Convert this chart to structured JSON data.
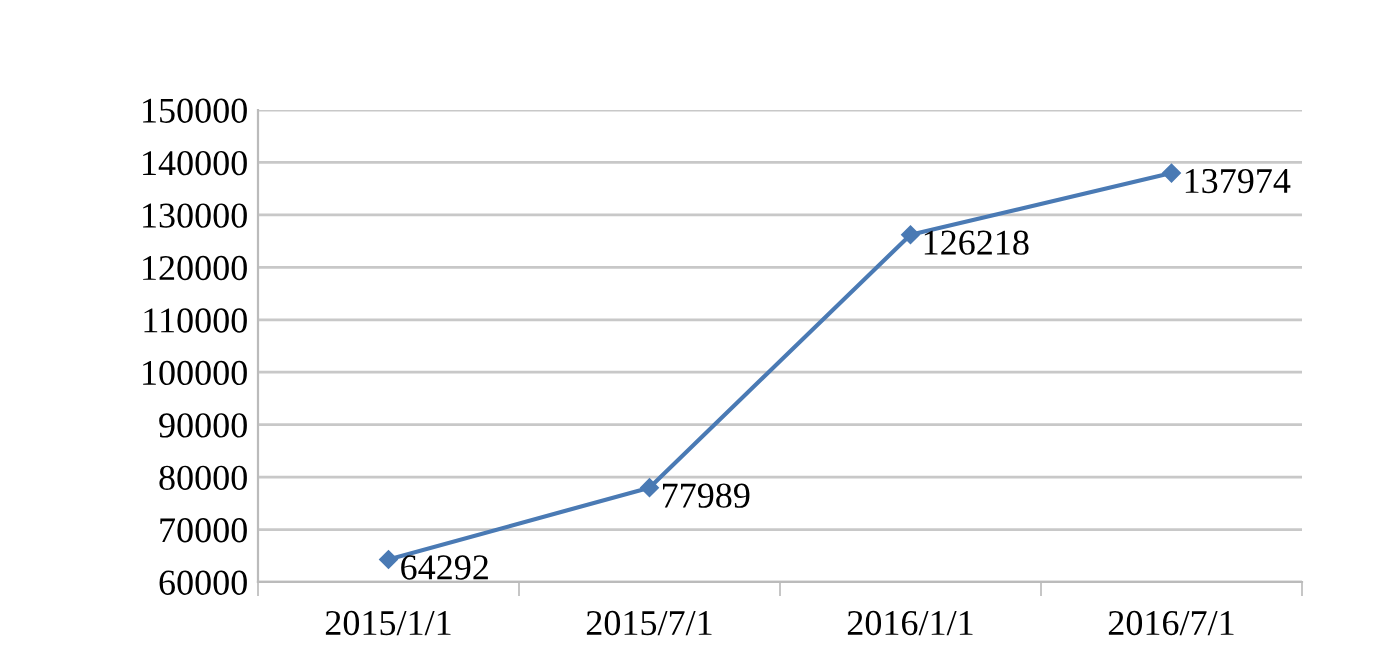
{
  "chart_data": {
    "type": "line",
    "categories": [
      "2015/1/1",
      "2015/7/1",
      "2016/1/1",
      "2016/7/1"
    ],
    "series": [
      {
        "color": "#4a7ab4",
        "values": [
          64292,
          77989,
          126218,
          137974
        ]
      }
    ],
    "ylim": [
      60000,
      150000
    ],
    "yticks": [
      60000,
      70000,
      80000,
      90000,
      100000,
      110000,
      120000,
      130000,
      140000,
      150000
    ],
    "grid": "y",
    "marker": "diamond",
    "line_style": "solid",
    "data_labels": true,
    "legend": false
  }
}
